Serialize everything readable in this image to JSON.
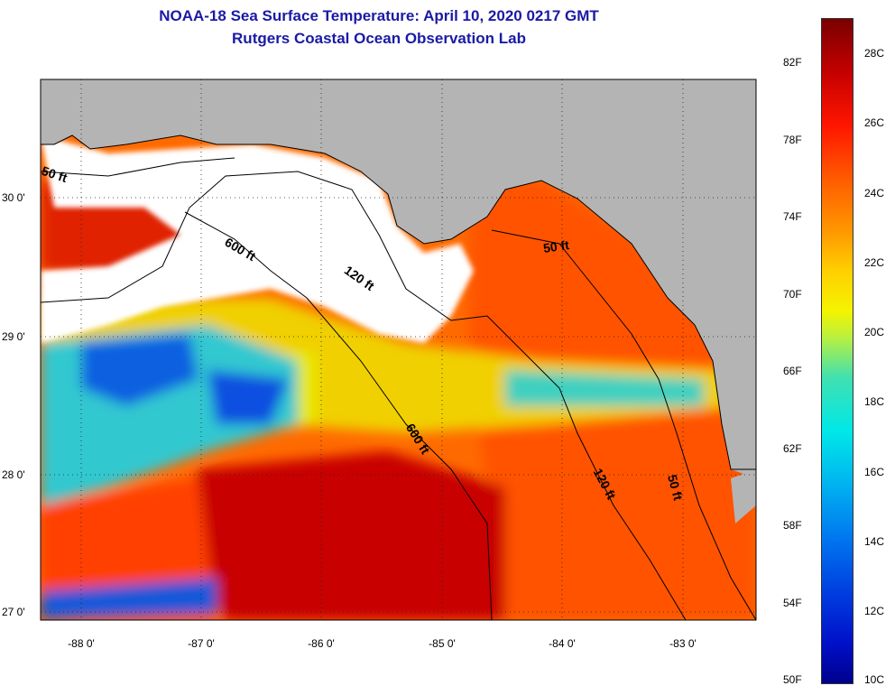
{
  "title": {
    "line1": "NOAA-18 Sea Surface Temperature:  April 10, 2020 0217 GMT",
    "line2": "Rutgers Coastal Ocean Observation Lab"
  },
  "axes": {
    "lat_labels": [
      "30 0'",
      "29 0'",
      "28 0'",
      "27 0'"
    ],
    "lon_labels": [
      "-88 0'",
      "-87 0'",
      "-86 0'",
      "-85 0'",
      "-84 0'",
      "-83 0'"
    ]
  },
  "contours": {
    "50ft_w": "50 ft",
    "600ft_n": "600 ft",
    "120ft_n": "120 ft",
    "50ft_ne": "50 ft",
    "600ft_s": "600 ft",
    "120ft_s": "120 ft",
    "50ft_se": "50 ft"
  },
  "colorbar": {
    "fahrenheit": [
      "82F",
      "78F",
      "74F",
      "70F",
      "66F",
      "62F",
      "58F",
      "54F",
      "50F"
    ],
    "celsius": [
      "28C",
      "26C",
      "24C",
      "22C",
      "20C",
      "18C",
      "16C",
      "14C",
      "12C",
      "10C"
    ]
  },
  "colors": {
    "land": "#b4b4b4",
    "cloud": "#ffffff",
    "title": "#1a1aa6"
  }
}
